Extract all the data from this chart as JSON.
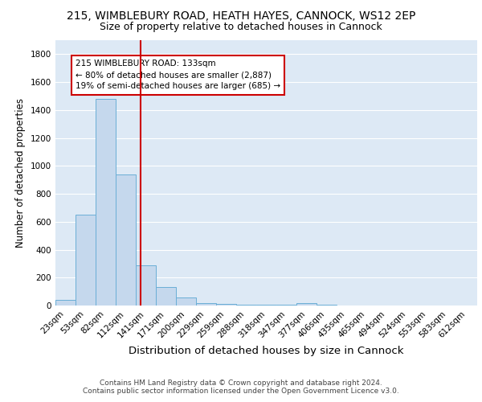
{
  "title1": "215, WIMBLEBURY ROAD, HEATH HAYES, CANNOCK, WS12 2EP",
  "title2": "Size of property relative to detached houses in Cannock",
  "xlabel": "Distribution of detached houses by size in Cannock",
  "ylabel": "Number of detached properties",
  "footnote1": "Contains HM Land Registry data © Crown copyright and database right 2024.",
  "footnote2": "Contains public sector information licensed under the Open Government Licence v3.0.",
  "bin_labels": [
    "23sqm",
    "53sqm",
    "82sqm",
    "112sqm",
    "141sqm",
    "171sqm",
    "200sqm",
    "229sqm",
    "259sqm",
    "288sqm",
    "318sqm",
    "347sqm",
    "377sqm",
    "406sqm",
    "435sqm",
    "465sqm",
    "494sqm",
    "524sqm",
    "553sqm",
    "583sqm",
    "612sqm"
  ],
  "bar_values": [
    40,
    650,
    1480,
    940,
    290,
    130,
    60,
    20,
    10,
    5,
    5,
    5,
    15,
    5,
    0,
    0,
    0,
    0,
    0,
    0,
    0
  ],
  "bar_color": "#c5d8ed",
  "bar_edge_color": "#6aaed6",
  "vline_color": "#cc0000",
  "annotation_text": "215 WIMBLEBURY ROAD: 133sqm\n← 80% of detached houses are smaller (2,887)\n19% of semi-detached houses are larger (685) →",
  "annotation_box_color": "white",
  "annotation_box_edge_color": "#cc0000",
  "ylim": [
    0,
    1900
  ],
  "background_color": "#dde9f5",
  "grid_color": "#ffffff",
  "title1_fontsize": 10,
  "title2_fontsize": 9,
  "xlabel_fontsize": 9.5,
  "ylabel_fontsize": 8.5,
  "tick_fontsize": 7.5,
  "annotation_fontsize": 7.5,
  "footnote_fontsize": 6.5,
  "footnote_color": "#444444"
}
